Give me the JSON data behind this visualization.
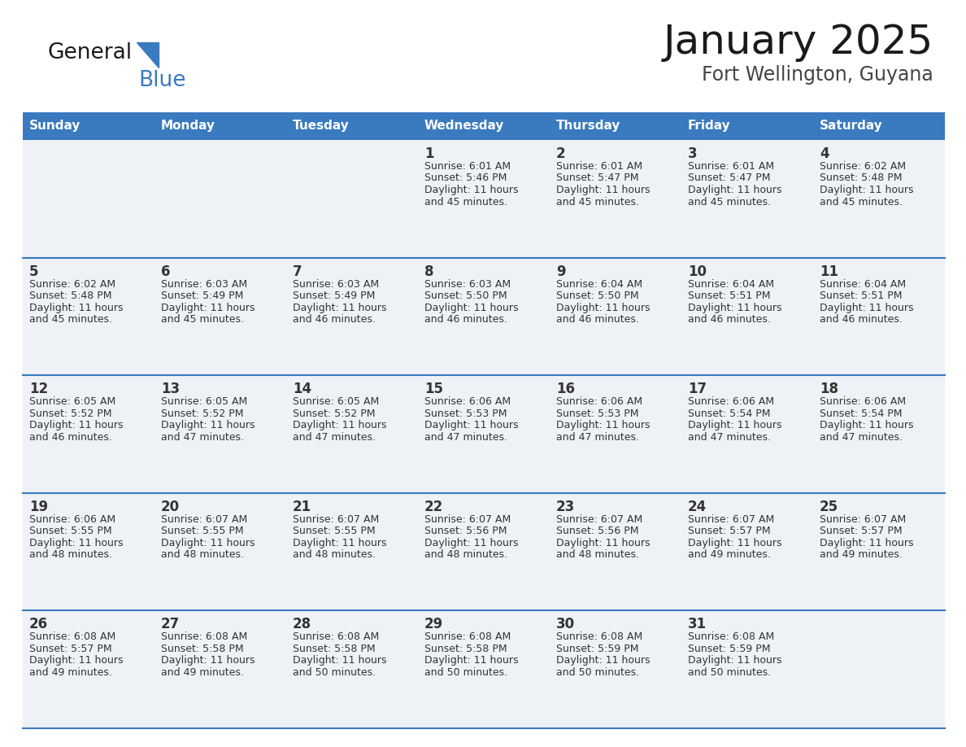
{
  "title": "January 2025",
  "subtitle": "Fort Wellington, Guyana",
  "header_color": "#3a7abf",
  "header_text_color": "#ffffff",
  "cell_bg_color": "#eef2f7",
  "separator_color": "#3a7abf",
  "text_color": "#333333",
  "days_of_week": [
    "Sunday",
    "Monday",
    "Tuesday",
    "Wednesday",
    "Thursday",
    "Friday",
    "Saturday"
  ],
  "calendar": [
    [
      {
        "day": "",
        "sunrise": "",
        "sunset": "",
        "daylight": ""
      },
      {
        "day": "",
        "sunrise": "",
        "sunset": "",
        "daylight": ""
      },
      {
        "day": "",
        "sunrise": "",
        "sunset": "",
        "daylight": ""
      },
      {
        "day": "1",
        "sunrise": "6:01 AM",
        "sunset": "5:46 PM",
        "daylight": "11 hours and 45 minutes."
      },
      {
        "day": "2",
        "sunrise": "6:01 AM",
        "sunset": "5:47 PM",
        "daylight": "11 hours and 45 minutes."
      },
      {
        "day": "3",
        "sunrise": "6:01 AM",
        "sunset": "5:47 PM",
        "daylight": "11 hours and 45 minutes."
      },
      {
        "day": "4",
        "sunrise": "6:02 AM",
        "sunset": "5:48 PM",
        "daylight": "11 hours and 45 minutes."
      }
    ],
    [
      {
        "day": "5",
        "sunrise": "6:02 AM",
        "sunset": "5:48 PM",
        "daylight": "11 hours and 45 minutes."
      },
      {
        "day": "6",
        "sunrise": "6:03 AM",
        "sunset": "5:49 PM",
        "daylight": "11 hours and 45 minutes."
      },
      {
        "day": "7",
        "sunrise": "6:03 AM",
        "sunset": "5:49 PM",
        "daylight": "11 hours and 46 minutes."
      },
      {
        "day": "8",
        "sunrise": "6:03 AM",
        "sunset": "5:50 PM",
        "daylight": "11 hours and 46 minutes."
      },
      {
        "day": "9",
        "sunrise": "6:04 AM",
        "sunset": "5:50 PM",
        "daylight": "11 hours and 46 minutes."
      },
      {
        "day": "10",
        "sunrise": "6:04 AM",
        "sunset": "5:51 PM",
        "daylight": "11 hours and 46 minutes."
      },
      {
        "day": "11",
        "sunrise": "6:04 AM",
        "sunset": "5:51 PM",
        "daylight": "11 hours and 46 minutes."
      }
    ],
    [
      {
        "day": "12",
        "sunrise": "6:05 AM",
        "sunset": "5:52 PM",
        "daylight": "11 hours and 46 minutes."
      },
      {
        "day": "13",
        "sunrise": "6:05 AM",
        "sunset": "5:52 PM",
        "daylight": "11 hours and 47 minutes."
      },
      {
        "day": "14",
        "sunrise": "6:05 AM",
        "sunset": "5:52 PM",
        "daylight": "11 hours and 47 minutes."
      },
      {
        "day": "15",
        "sunrise": "6:06 AM",
        "sunset": "5:53 PM",
        "daylight": "11 hours and 47 minutes."
      },
      {
        "day": "16",
        "sunrise": "6:06 AM",
        "sunset": "5:53 PM",
        "daylight": "11 hours and 47 minutes."
      },
      {
        "day": "17",
        "sunrise": "6:06 AM",
        "sunset": "5:54 PM",
        "daylight": "11 hours and 47 minutes."
      },
      {
        "day": "18",
        "sunrise": "6:06 AM",
        "sunset": "5:54 PM",
        "daylight": "11 hours and 47 minutes."
      }
    ],
    [
      {
        "day": "19",
        "sunrise": "6:06 AM",
        "sunset": "5:55 PM",
        "daylight": "11 hours and 48 minutes."
      },
      {
        "day": "20",
        "sunrise": "6:07 AM",
        "sunset": "5:55 PM",
        "daylight": "11 hours and 48 minutes."
      },
      {
        "day": "21",
        "sunrise": "6:07 AM",
        "sunset": "5:55 PM",
        "daylight": "11 hours and 48 minutes."
      },
      {
        "day": "22",
        "sunrise": "6:07 AM",
        "sunset": "5:56 PM",
        "daylight": "11 hours and 48 minutes."
      },
      {
        "day": "23",
        "sunrise": "6:07 AM",
        "sunset": "5:56 PM",
        "daylight": "11 hours and 48 minutes."
      },
      {
        "day": "24",
        "sunrise": "6:07 AM",
        "sunset": "5:57 PM",
        "daylight": "11 hours and 49 minutes."
      },
      {
        "day": "25",
        "sunrise": "6:07 AM",
        "sunset": "5:57 PM",
        "daylight": "11 hours and 49 minutes."
      }
    ],
    [
      {
        "day": "26",
        "sunrise": "6:08 AM",
        "sunset": "5:57 PM",
        "daylight": "11 hours and 49 minutes."
      },
      {
        "day": "27",
        "sunrise": "6:08 AM",
        "sunset": "5:58 PM",
        "daylight": "11 hours and 49 minutes."
      },
      {
        "day": "28",
        "sunrise": "6:08 AM",
        "sunset": "5:58 PM",
        "daylight": "11 hours and 50 minutes."
      },
      {
        "day": "29",
        "sunrise": "6:08 AM",
        "sunset": "5:58 PM",
        "daylight": "11 hours and 50 minutes."
      },
      {
        "day": "30",
        "sunrise": "6:08 AM",
        "sunset": "5:59 PM",
        "daylight": "11 hours and 50 minutes."
      },
      {
        "day": "31",
        "sunrise": "6:08 AM",
        "sunset": "5:59 PM",
        "daylight": "11 hours and 50 minutes."
      },
      {
        "day": "",
        "sunrise": "",
        "sunset": "",
        "daylight": ""
      }
    ]
  ]
}
